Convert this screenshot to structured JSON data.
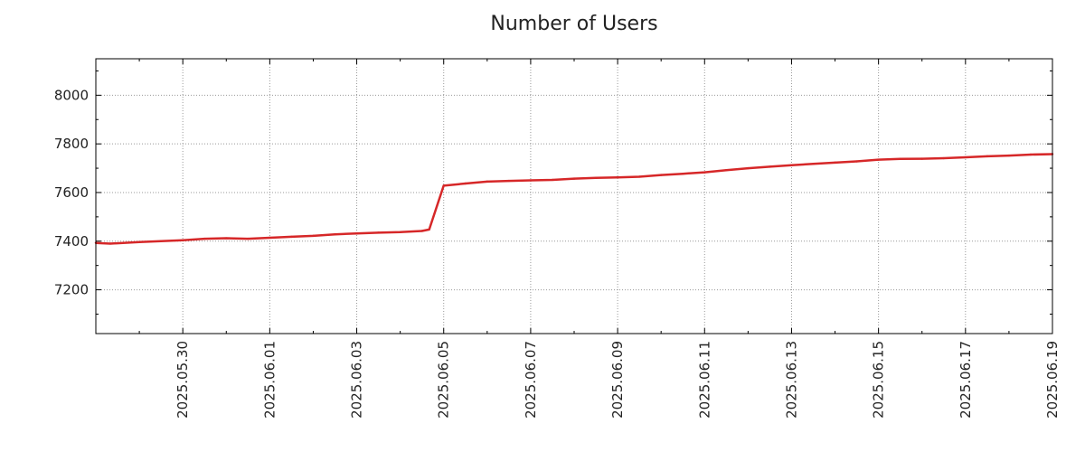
{
  "chart_data": {
    "type": "line",
    "title": "Number of Users",
    "xlabel": "",
    "ylabel": "",
    "xlim": [
      "2025-05-28",
      "2025-06-19"
    ],
    "ylim": [
      7020,
      8150
    ],
    "y_ticks": [
      7200,
      7400,
      7600,
      7800,
      8000
    ],
    "x_ticks": [
      "2025.05.30",
      "2025.06.01",
      "2025.06.03",
      "2025.06.05",
      "2025.06.07",
      "2025.06.09",
      "2025.06.11",
      "2025.06.13",
      "2025.06.15",
      "2025.06.17",
      "2025.06.19"
    ],
    "grid": true,
    "series": [
      {
        "color": "#d62728",
        "x": [
          "2025-05-28",
          "2025-05-28 08:00",
          "2025-05-29",
          "2025-05-29 12:00",
          "2025-05-30",
          "2025-05-30 12:00",
          "2025-05-31",
          "2025-05-31 12:00",
          "2025-06-01",
          "2025-06-01 12:00",
          "2025-06-02",
          "2025-06-02 12:00",
          "2025-06-03",
          "2025-06-03 12:00",
          "2025-06-04",
          "2025-06-04 12:00",
          "2025-06-04 16:00",
          "2025-06-05",
          "2025-06-05 12:00",
          "2025-06-06",
          "2025-06-06 12:00",
          "2025-06-07",
          "2025-06-07 12:00",
          "2025-06-08",
          "2025-06-08 12:00",
          "2025-06-09",
          "2025-06-09 12:00",
          "2025-06-10",
          "2025-06-10 12:00",
          "2025-06-11",
          "2025-06-11 12:00",
          "2025-06-12",
          "2025-06-12 12:00",
          "2025-06-13",
          "2025-06-13 12:00",
          "2025-06-14",
          "2025-06-14 12:00",
          "2025-06-15",
          "2025-06-15 12:00",
          "2025-06-16",
          "2025-06-16 12:00",
          "2025-06-17",
          "2025-06-17 12:00",
          "2025-06-18",
          "2025-06-18 12:00",
          "2025-06-19"
        ],
        "values": [
          7393,
          7390,
          7396,
          7400,
          7404,
          7410,
          7412,
          7410,
          7414,
          7418,
          7422,
          7428,
          7432,
          7435,
          7437,
          7442,
          7448,
          7628,
          7637,
          7645,
          7648,
          7650,
          7652,
          7657,
          7660,
          7662,
          7665,
          7672,
          7677,
          7683,
          7692,
          7700,
          7706,
          7712,
          7718,
          7723,
          7728,
          7735,
          7738,
          7739,
          7741,
          7745,
          7749,
          7752,
          7756,
          7758
        ]
      }
    ]
  }
}
